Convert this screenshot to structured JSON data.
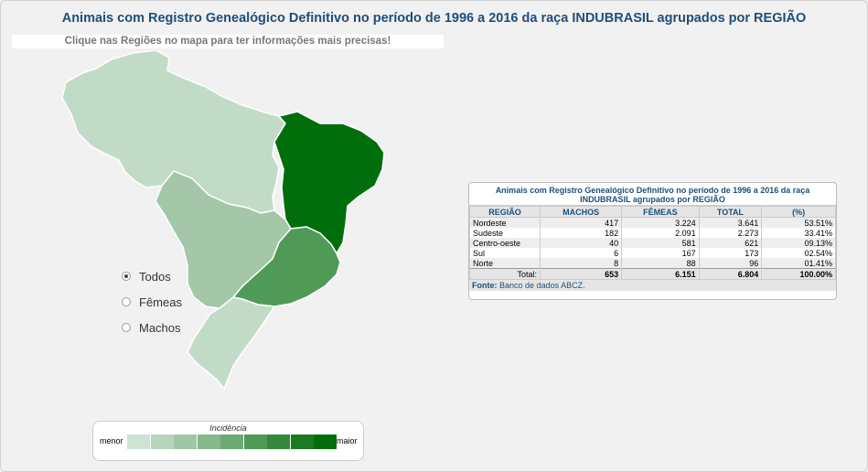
{
  "title": "Animais com Registro Genealógico Definitivo no período de 1996 a 2016 da raça INDUBRASIL agrupados por REGIÃO",
  "hint": "Clique nas Regiões no mapa para ter informações mais precisas!",
  "map": {
    "regions": [
      {
        "name": "Norte",
        "color": "#c2dbc6"
      },
      {
        "name": "Nordeste",
        "color": "#006e0b"
      },
      {
        "name": "Centro-oeste",
        "color": "#a3c7a8"
      },
      {
        "name": "Sudeste",
        "color": "#4f9a57"
      },
      {
        "name": "Sul",
        "color": "#c2dbc6"
      }
    ]
  },
  "filters": [
    {
      "label": "Todos",
      "checked": true
    },
    {
      "label": "Fêmeas",
      "checked": false
    },
    {
      "label": "Machos",
      "checked": false
    }
  ],
  "legend": {
    "title": "Incidência",
    "min_label": "menor",
    "max_label": "maior",
    "colors": [
      "#cfe3d2",
      "#b7d5bb",
      "#9ec8a4",
      "#85b98c",
      "#6caa74",
      "#4f9a57",
      "#33883c",
      "#1b7a24",
      "#006e0b"
    ]
  },
  "table": {
    "title": "Animais com Registro Genealógico Definitivo no período de 1996 a 2016 da raça INDUBRASIL agrupados por REGIÃO",
    "headers": [
      "REGIÃO",
      "MACHOS",
      "FÊMEAS",
      "TOTAL",
      "(%)"
    ],
    "rows": [
      [
        "Nordeste",
        "417",
        "3.224",
        "3.641",
        "53.51%"
      ],
      [
        "Sudeste",
        "182",
        "2.091",
        "2.273",
        "33.41%"
      ],
      [
        "Centro-oeste",
        "40",
        "581",
        "621",
        "09.13%"
      ],
      [
        "Sul",
        "6",
        "167",
        "173",
        "02.54%"
      ],
      [
        "Norte",
        "8",
        "88",
        "96",
        "01.41%"
      ]
    ],
    "total": [
      "Total:",
      "653",
      "6.151",
      "6.804",
      "100.00%"
    ],
    "source_label": "Fonte:",
    "source_text": "Banco de dados ABCZ."
  }
}
